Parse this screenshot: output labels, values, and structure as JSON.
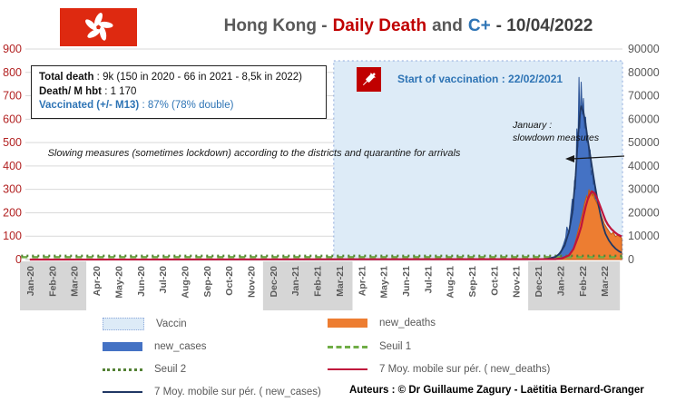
{
  "header": {
    "title_part1": "Hong Kong -",
    "title_part2": "Daily Death",
    "title_part3": "and",
    "title_part4": "C+",
    "title_part5": "- 10/04/2022"
  },
  "info_box": {
    "line1_label": "Total death",
    "line1_value": " : 9k (150 in 2020 - 66 in 2021 - 8,5k in 2022)",
    "line2_label": "Death/ M hbt",
    "line2_value": " : 1 170",
    "line3_label": "Vaccinated (+/- M13)",
    "line3_value": " : 87% (78% double)"
  },
  "annotations": {
    "slowing_measures": "Slowing measures (sometimes lockdown) according to the districts and quarantine for arrivals",
    "start_vaccination": "Start of vaccination : 22/02/2021",
    "january_line1": "January :",
    "january_line2": "slowdown measures"
  },
  "legend": {
    "items": [
      {
        "label": "Vaccin"
      },
      {
        "label": "new_deaths"
      },
      {
        "label": "new_cases"
      },
      {
        "label": "Seuil 1"
      },
      {
        "label": "Seuil 2"
      },
      {
        "label": "7 Moy. mobile sur pér. ( new_deaths)"
      },
      {
        "label": "7 Moy. mobile sur pér. ( new_cases)"
      }
    ]
  },
  "footer": {
    "authors": "Auteurs : © Dr Guillaume Zagury - Laëtitia Bernard-Granger"
  },
  "chart_data": {
    "type": "area",
    "title": "Hong Kong - Daily Death and C+ - 10/04/2022",
    "x_index_note": "x values are fractional month indices, 0 = Jan-20 tick",
    "categories": [
      "Jan-20",
      "Feb-20",
      "Mar-20",
      "Apr-20",
      "May-20",
      "Jun-20",
      "Jul-20",
      "Aug-20",
      "Sep-20",
      "Oct-20",
      "Nov-20",
      "Dec-20",
      "Jan-21",
      "Feb-21",
      "Mar-21",
      "Apr-21",
      "May-21",
      "Jun-21",
      "Jul-21",
      "Aug-21",
      "Sep-21",
      "Oct-21",
      "Nov-21",
      "Dec-21",
      "Jan-22",
      "Feb-22",
      "Mar-22"
    ],
    "left_axis": {
      "ticks": [
        0,
        100,
        200,
        300,
        400,
        500,
        600,
        700,
        800,
        900
      ],
      "max": 900,
      "color": "#B22222"
    },
    "right_axis": {
      "ticks": [
        0,
        10000,
        20000,
        30000,
        40000,
        50000,
        60000,
        70000,
        80000,
        90000
      ],
      "max": 90000,
      "color": "#595959"
    },
    "winter_bands": [
      [
        -0.45,
        2.55
      ],
      [
        10.55,
        14.6
      ],
      [
        22.55,
        26.7
      ]
    ],
    "vaccin_region": {
      "label": "Vaccin",
      "start_idx": 13.75,
      "end_idx": 26.82,
      "start_date": "22/02/2021",
      "fill": "#DDEBF7",
      "border": "#8FAADC"
    },
    "layout": {
      "plot_left": 28,
      "plot_right": 686,
      "y_zero": 286,
      "y_top": 54,
      "tick0_x": 33,
      "month_w": 24.35,
      "region_top": 67,
      "band_top": 288,
      "band_bottom": 342
    },
    "annotation_arrow": {
      "x1": 688,
      "y1": 172,
      "x2": 624,
      "y2": 175
    },
    "series": [
      {
        "name": "new_cases",
        "axis": "right",
        "type": "area",
        "color": "#4472C4",
        "edge": "#2E5597",
        "points": [
          [
            0,
            0
          ],
          [
            10,
            60
          ],
          [
            16,
            90
          ],
          [
            20,
            130
          ],
          [
            23.0,
            150
          ],
          [
            23.4,
            300
          ],
          [
            23.7,
            900
          ],
          [
            23.9,
            2000
          ],
          [
            24.05,
            4000
          ],
          [
            24.15,
            6500
          ],
          [
            24.25,
            9500
          ],
          [
            24.3,
            14000
          ],
          [
            24.4,
            11000
          ],
          [
            24.45,
            17000
          ],
          [
            24.55,
            26000
          ],
          [
            24.6,
            21000
          ],
          [
            24.65,
            34000
          ],
          [
            24.7,
            30000
          ],
          [
            24.75,
            56000
          ],
          [
            24.8,
            48000
          ],
          [
            24.85,
            78000
          ],
          [
            24.9,
            56000
          ],
          [
            24.95,
            76000
          ],
          [
            25.0,
            62000
          ],
          [
            25.05,
            69000
          ],
          [
            25.1,
            56000
          ],
          [
            25.15,
            61000
          ],
          [
            25.2,
            50000
          ],
          [
            25.25,
            53000
          ],
          [
            25.3,
            43000
          ],
          [
            25.35,
            47000
          ],
          [
            25.4,
            36000
          ],
          [
            25.45,
            39000
          ],
          [
            25.5,
            32000
          ],
          [
            25.55,
            34000
          ],
          [
            25.6,
            26000
          ],
          [
            25.65,
            28000
          ],
          [
            25.7,
            21500
          ],
          [
            25.75,
            23000
          ],
          [
            25.8,
            17000
          ],
          [
            25.9,
            13000
          ],
          [
            26.0,
            10000
          ],
          [
            26.1,
            7800
          ],
          [
            26.2,
            6200
          ],
          [
            26.3,
            5000
          ],
          [
            26.45,
            3900
          ],
          [
            26.6,
            3000
          ],
          [
            26.78,
            2500
          ]
        ]
      },
      {
        "name": "new_deaths",
        "axis": "left",
        "type": "area",
        "color": "#ED7D31",
        "edge": "#C55A11",
        "points": [
          [
            0,
            1
          ],
          [
            11,
            1
          ],
          [
            23.5,
            1
          ],
          [
            23.9,
            3
          ],
          [
            24.1,
            6
          ],
          [
            24.3,
            14
          ],
          [
            24.5,
            30
          ],
          [
            24.6,
            48
          ],
          [
            24.7,
            80
          ],
          [
            24.8,
            120
          ],
          [
            24.9,
            155
          ],
          [
            25.0,
            195
          ],
          [
            25.1,
            240
          ],
          [
            25.2,
            272
          ],
          [
            25.25,
            258
          ],
          [
            25.3,
            300
          ],
          [
            25.35,
            278
          ],
          [
            25.4,
            296
          ],
          [
            25.45,
            270
          ],
          [
            25.5,
            284
          ],
          [
            25.55,
            262
          ],
          [
            25.6,
            252
          ],
          [
            25.7,
            232
          ],
          [
            25.8,
            205
          ],
          [
            25.9,
            178
          ],
          [
            26.0,
            152
          ],
          [
            26.1,
            136
          ],
          [
            26.2,
            122
          ],
          [
            26.3,
            108
          ],
          [
            26.4,
            116
          ],
          [
            26.5,
            98
          ],
          [
            26.6,
            104
          ],
          [
            26.78,
            92
          ]
        ]
      },
      {
        "name": "Seuil 1",
        "axis": "left",
        "type": "line",
        "color": "#70AD47",
        "width": 2.5,
        "dash": "7 5",
        "points": [
          [
            -0.4,
            10
          ],
          [
            26.82,
            10
          ]
        ]
      },
      {
        "name": "Seuil 2",
        "axis": "left",
        "type": "line",
        "color": "#548235",
        "width": 2.5,
        "dash": "2 4",
        "points": [
          [
            -0.4,
            16
          ],
          [
            26.82,
            16
          ]
        ]
      },
      {
        "name": "7 Moy. mobile sur pér. ( new_cases)",
        "axis": "right",
        "type": "line",
        "color": "#203864",
        "width": 1.8,
        "points": [
          [
            0,
            0
          ],
          [
            23.0,
            100
          ],
          [
            23.4,
            300
          ],
          [
            23.8,
            1200
          ],
          [
            24.0,
            2800
          ],
          [
            24.2,
            6000
          ],
          [
            24.4,
            12000
          ],
          [
            24.55,
            20000
          ],
          [
            24.7,
            36000
          ],
          [
            24.8,
            52000
          ],
          [
            24.9,
            63000
          ],
          [
            24.95,
            65500
          ],
          [
            25.05,
            63000
          ],
          [
            25.15,
            58000
          ],
          [
            25.25,
            51000
          ],
          [
            25.35,
            45000
          ],
          [
            25.45,
            39000
          ],
          [
            25.55,
            33000
          ],
          [
            25.65,
            27500
          ],
          [
            25.75,
            22500
          ],
          [
            25.85,
            18000
          ],
          [
            25.95,
            14000
          ],
          [
            26.05,
            11000
          ],
          [
            26.2,
            8200
          ],
          [
            26.35,
            6200
          ],
          [
            26.5,
            4700
          ],
          [
            26.65,
            3600
          ],
          [
            26.78,
            2900
          ]
        ]
      },
      {
        "name": "7 Moy. mobile sur pér. ( new_deaths)",
        "axis": "left",
        "type": "line",
        "color": "#C0143C",
        "width": 2.2,
        "points": [
          [
            0,
            0
          ],
          [
            23.8,
            2
          ],
          [
            24.1,
            6
          ],
          [
            24.4,
            18
          ],
          [
            24.6,
            45
          ],
          [
            24.8,
            95
          ],
          [
            24.95,
            140
          ],
          [
            25.05,
            185
          ],
          [
            25.15,
            225
          ],
          [
            25.25,
            258
          ],
          [
            25.35,
            280
          ],
          [
            25.45,
            291
          ],
          [
            25.55,
            284
          ],
          [
            25.65,
            266
          ],
          [
            25.75,
            243
          ],
          [
            25.85,
            218
          ],
          [
            25.95,
            192
          ],
          [
            26.05,
            168
          ],
          [
            26.15,
            150
          ],
          [
            26.3,
            132
          ],
          [
            26.45,
            118
          ],
          [
            26.6,
            107
          ],
          [
            26.78,
            99
          ]
        ]
      }
    ],
    "legend_position": "bottom"
  }
}
